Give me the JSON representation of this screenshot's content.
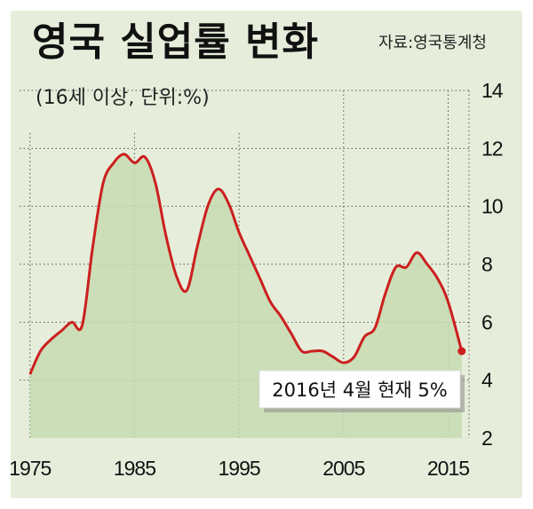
{
  "header": {
    "title": "영국 실업률 변화",
    "subtitle": "(16세 이상, 단위:%)",
    "source": "자료:영국통계청"
  },
  "colors": {
    "panel": "#e6eedb",
    "area": "#c5dab0",
    "line": "#cc1f1f",
    "grid": "#555555"
  },
  "chart_data": {
    "type": "area",
    "title": "영국 실업률 변화",
    "subtitle": "(16세 이상, 단위:%)",
    "xlabel": "",
    "ylabel": "",
    "xlim": [
      1974,
      2017
    ],
    "ylim": [
      2,
      14
    ],
    "x_ticks": [
      1975,
      1985,
      1995,
      2005,
      2015
    ],
    "y_ticks": [
      2,
      4,
      6,
      8,
      10,
      12,
      14
    ],
    "grid": true,
    "series": [
      {
        "name": "",
        "x": [
          1975,
          1976,
          1977,
          1978,
          1979,
          1980,
          1981,
          1982,
          1983,
          1984,
          1985,
          1986,
          1987,
          1988,
          1989,
          1990,
          1991,
          1992,
          1993,
          1994,
          1995,
          1996,
          1997,
          1998,
          1999,
          2000,
          2001,
          2002,
          2003,
          2004,
          2005,
          2006,
          2007,
          2008,
          2009,
          2010,
          2011,
          2012,
          2013,
          2014,
          2015,
          2016.3
        ],
        "values": [
          4.2,
          5.0,
          5.4,
          5.7,
          6.0,
          5.9,
          8.6,
          10.8,
          11.5,
          11.8,
          11.5,
          11.7,
          10.8,
          9.0,
          7.6,
          7.1,
          8.6,
          10.0,
          10.6,
          10.1,
          9.1,
          8.3,
          7.5,
          6.7,
          6.2,
          5.6,
          5.0,
          5.0,
          5.0,
          4.8,
          4.6,
          4.8,
          5.5,
          5.8,
          7.0,
          7.9,
          7.9,
          8.4,
          8.0,
          7.5,
          6.7,
          5.0
        ]
      }
    ],
    "annotations": [
      {
        "x": 2016.3,
        "y": 5.0,
        "text": "2016년 4월 현재 5%"
      }
    ]
  }
}
